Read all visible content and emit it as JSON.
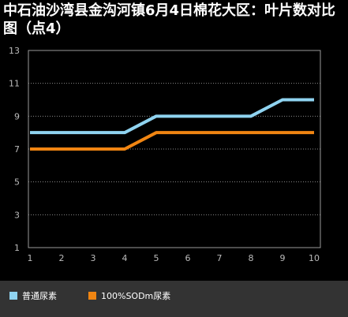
{
  "chart_data": {
    "type": "line",
    "title": "中石油沙湾县金沟河镇6月4日棉花大区：叶片数对比图（点4）",
    "x": [
      1,
      2,
      3,
      4,
      5,
      6,
      7,
      8,
      9,
      10
    ],
    "xlim": [
      1,
      10
    ],
    "ylim": [
      1,
      13
    ],
    "yticks": [
      1,
      3,
      5,
      7,
      9,
      11,
      13
    ],
    "grid": true,
    "legend_position": "bottom",
    "series": [
      {
        "name": "普通尿素",
        "color": "#8fd3f0",
        "values": [
          8,
          8,
          8,
          8,
          9,
          9,
          9,
          9,
          10,
          10
        ]
      },
      {
        "name": "100%SODm尿素",
        "color": "#f08512",
        "values": [
          7,
          7,
          7,
          7,
          8,
          8,
          8,
          8,
          8,
          8
        ]
      }
    ]
  }
}
